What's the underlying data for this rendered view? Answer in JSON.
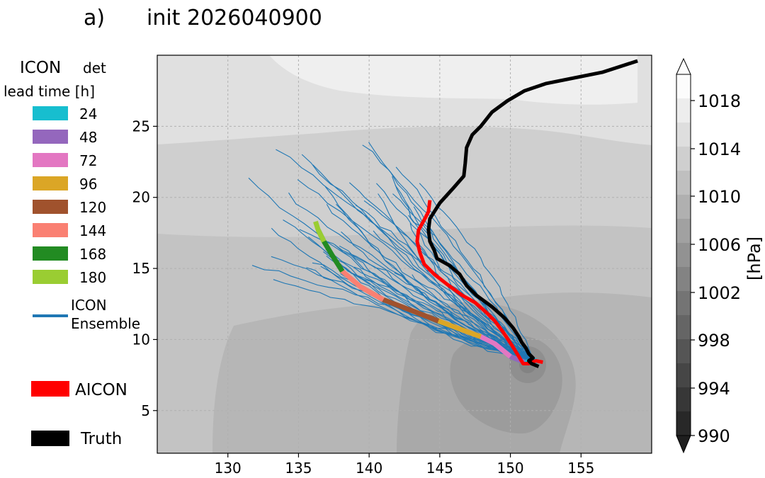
{
  "panel_label": "a)",
  "title": "init 2026040900",
  "legend": {
    "header_model": "ICON",
    "header_tag": "det",
    "header_sub": "lead time [h]",
    "lead_times": [
      {
        "label": "24",
        "color": "#17becf"
      },
      {
        "label": "48",
        "color": "#9467bd"
      },
      {
        "label": "72",
        "color": "#e377c2"
      },
      {
        "label": "96",
        "color": "#dba626"
      },
      {
        "label": "120",
        "color": "#a0522d"
      },
      {
        "label": "144",
        "color": "#fa8072"
      },
      {
        "label": "168",
        "color": "#228b22"
      },
      {
        "label": "180",
        "color": "#9acd32"
      }
    ],
    "ensemble_line1": "ICON",
    "ensemble_line2": "Ensemble",
    "ensemble_color": "#1f77b4",
    "aicon_label": "AICON",
    "aicon_color": "#ff0000",
    "truth_label": "Truth",
    "truth_color": "#000000"
  },
  "colorbar": {
    "label": "[hPa]",
    "ticks": [
      "1018",
      "1014",
      "1010",
      "1006",
      "1002",
      "998",
      "994",
      "990"
    ]
  },
  "chart_data": {
    "type": "line",
    "xlim": [
      125,
      160
    ],
    "ylim": [
      2,
      30
    ],
    "xticks": [
      130,
      135,
      140,
      145,
      150,
      155
    ],
    "yticks": [
      5,
      10,
      15,
      20,
      25
    ],
    "grid": true,
    "pressure_range_hPa": [
      990,
      1020
    ],
    "series": [
      {
        "name": "Truth",
        "color": "#000000",
        "points": [
          [
            152.0,
            8.1
          ],
          [
            151.5,
            8.3
          ],
          [
            151.3,
            8.5
          ],
          [
            151.6,
            8.7
          ],
          [
            151.3,
            9.0
          ],
          [
            151.1,
            9.4
          ],
          [
            150.8,
            9.8
          ],
          [
            150.6,
            10.2
          ],
          [
            150.2,
            10.8
          ],
          [
            149.6,
            11.5
          ],
          [
            148.7,
            12.3
          ],
          [
            147.6,
            13.1
          ],
          [
            146.9,
            13.8
          ],
          [
            146.4,
            14.6
          ],
          [
            145.7,
            15.2
          ],
          [
            144.8,
            15.7
          ],
          [
            144.6,
            16.3
          ],
          [
            144.3,
            16.9
          ],
          [
            144.2,
            17.7
          ],
          [
            144.3,
            18.5
          ],
          [
            145.0,
            19.6
          ],
          [
            146.0,
            20.7
          ],
          [
            146.7,
            21.5
          ],
          [
            146.8,
            22.4
          ],
          [
            146.9,
            23.5
          ],
          [
            147.3,
            24.4
          ],
          [
            147.9,
            25.0
          ],
          [
            148.7,
            26.0
          ],
          [
            149.8,
            26.8
          ],
          [
            151.0,
            27.5
          ],
          [
            152.5,
            28.0
          ],
          [
            154.5,
            28.4
          ],
          [
            156.5,
            28.8
          ],
          [
            159.0,
            29.6
          ]
        ]
      },
      {
        "name": "AICON",
        "color": "#ff0000",
        "points": [
          [
            152.3,
            8.4
          ],
          [
            151.8,
            8.5
          ],
          [
            151.3,
            8.3
          ],
          [
            150.9,
            8.3
          ],
          [
            150.6,
            8.8
          ],
          [
            150.1,
            9.6
          ],
          [
            149.5,
            10.5
          ],
          [
            148.9,
            11.3
          ],
          [
            148.3,
            11.9
          ],
          [
            147.5,
            12.6
          ],
          [
            146.6,
            13.1
          ],
          [
            145.5,
            13.9
          ],
          [
            144.6,
            14.6
          ],
          [
            143.9,
            15.3
          ],
          [
            143.6,
            16.1
          ],
          [
            143.4,
            16.9
          ],
          [
            143.5,
            17.7
          ],
          [
            144.0,
            18.6
          ],
          [
            144.2,
            19.0
          ],
          [
            144.3,
            19.8
          ]
        ]
      },
      {
        "name": "ICON det",
        "color": "#1f77b4",
        "points": [
          [
            151.9,
            8.5
          ],
          [
            151.0,
            8.4
          ],
          [
            150.0,
            8.8
          ],
          [
            148.9,
            9.7
          ],
          [
            147.9,
            10.2
          ],
          [
            146.8,
            10.6
          ],
          [
            144.9,
            11.3
          ],
          [
            143.1,
            12.0
          ],
          [
            141.0,
            12.8
          ],
          [
            139.4,
            13.7
          ],
          [
            138.1,
            14.8
          ],
          [
            137.4,
            15.9
          ],
          [
            136.8,
            16.9
          ],
          [
            136.4,
            17.7
          ],
          [
            136.2,
            18.3
          ]
        ]
      }
    ]
  }
}
